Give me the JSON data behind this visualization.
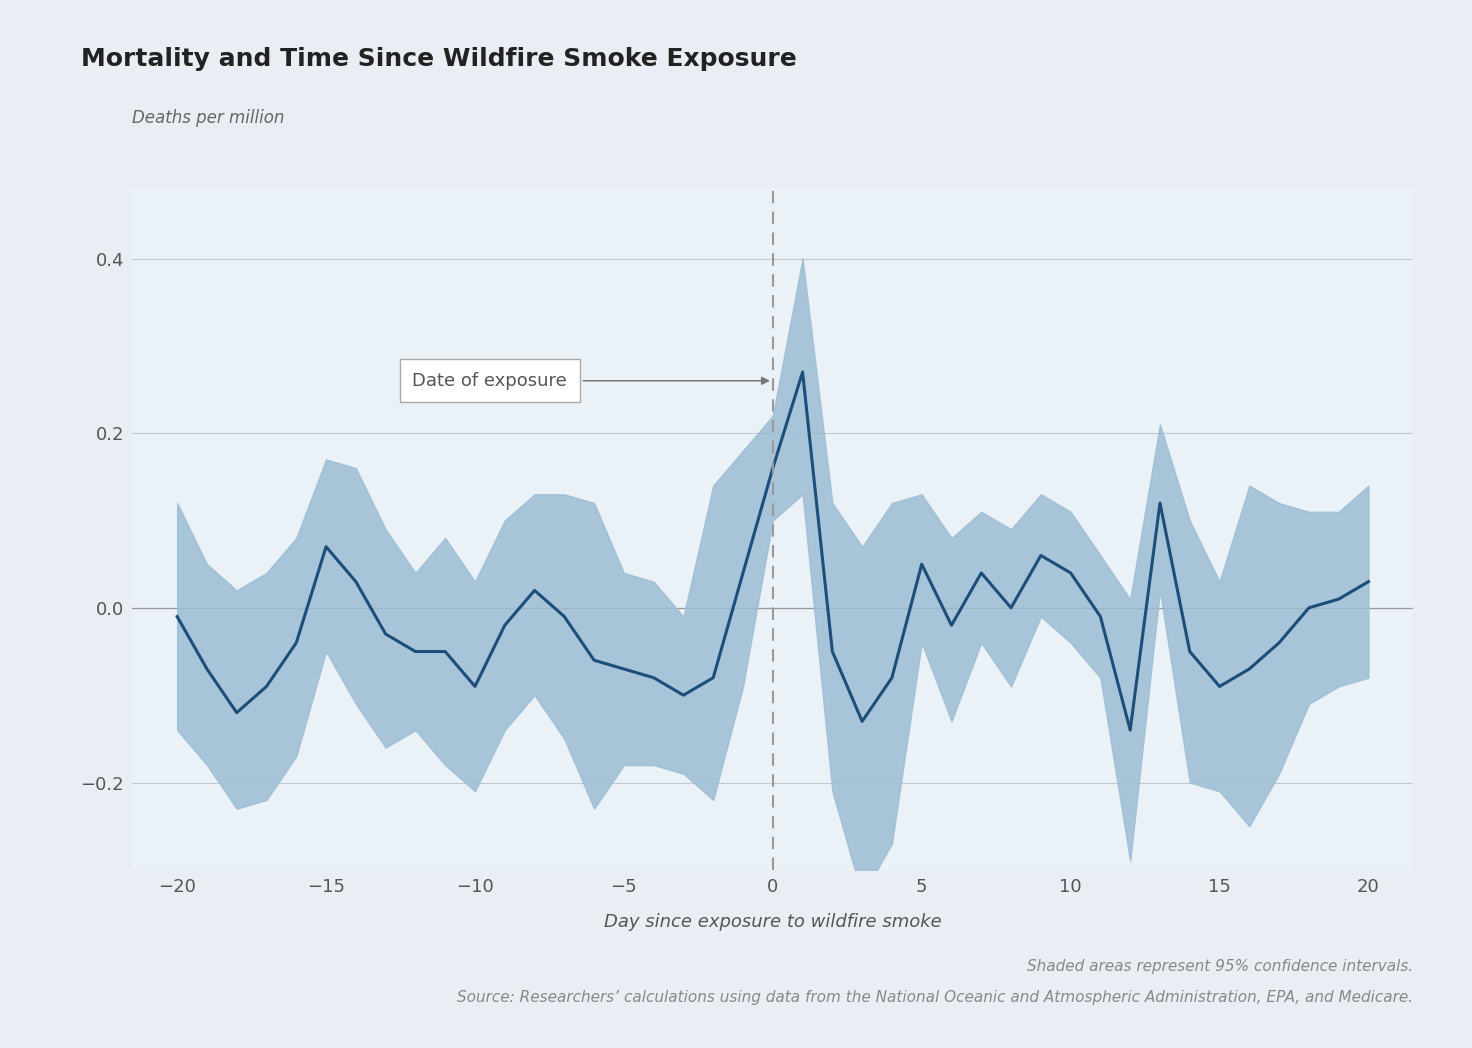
{
  "title": "Mortality and Time Since Wildfire Smoke Exposure",
  "ylabel": "Deaths per million",
  "xlabel": "Day since exposure to wildfire smoke",
  "background_color": "#e8eef3",
  "plot_bg_color": "#eaf1f7",
  "line_color": "#1d4e7a",
  "ci_color": "#9dbdd4",
  "annotation_text": "Date of exposure",
  "source_line1": "Shaded areas represent 95% confidence intervals.",
  "source_line2": "Source: Researchers’ calculations using data from the National Oceanic and Atmospheric Administration, EPA, and Medicare.",
  "xlim": [
    -21.5,
    21.5
  ],
  "ylim": [
    -0.3,
    0.48
  ],
  "yticks": [
    -0.2,
    0.0,
    0.2,
    0.4
  ],
  "xticks": [
    -20,
    -15,
    -10,
    -5,
    0,
    5,
    10,
    15,
    20
  ],
  "days": [
    -20,
    -19,
    -18,
    -17,
    -16,
    -15,
    -14,
    -13,
    -12,
    -11,
    -10,
    -9,
    -8,
    -7,
    -6,
    -5,
    -4,
    -3,
    -2,
    -1,
    0,
    1,
    2,
    3,
    4,
    5,
    6,
    7,
    8,
    9,
    10,
    11,
    12,
    13,
    14,
    15,
    16,
    17,
    18,
    19,
    20
  ],
  "mean": [
    -0.01,
    -0.07,
    -0.12,
    -0.09,
    -0.04,
    0.07,
    0.03,
    -0.03,
    -0.05,
    -0.05,
    -0.09,
    -0.02,
    0.02,
    -0.01,
    -0.06,
    -0.07,
    -0.08,
    -0.1,
    -0.08,
    0.04,
    0.16,
    0.27,
    -0.05,
    -0.13,
    -0.08,
    0.05,
    -0.02,
    0.04,
    0.0,
    0.06,
    0.04,
    -0.01,
    -0.14,
    0.12,
    -0.05,
    -0.09,
    -0.07,
    -0.04,
    0.0,
    0.01,
    0.03
  ],
  "ci_upper": [
    0.12,
    0.05,
    0.02,
    0.04,
    0.08,
    0.17,
    0.16,
    0.09,
    0.04,
    0.08,
    0.03,
    0.1,
    0.13,
    0.13,
    0.12,
    0.04,
    0.03,
    -0.01,
    0.14,
    0.18,
    0.22,
    0.4,
    0.12,
    0.07,
    0.12,
    0.13,
    0.08,
    0.11,
    0.09,
    0.13,
    0.11,
    0.06,
    0.01,
    0.21,
    0.1,
    0.03,
    0.14,
    0.12,
    0.11,
    0.11,
    0.14
  ],
  "ci_lower": [
    -0.14,
    -0.18,
    -0.23,
    -0.22,
    -0.17,
    -0.05,
    -0.11,
    -0.16,
    -0.14,
    -0.18,
    -0.21,
    -0.14,
    -0.1,
    -0.15,
    -0.23,
    -0.18,
    -0.18,
    -0.19,
    -0.22,
    -0.09,
    0.1,
    0.13,
    -0.21,
    -0.33,
    -0.27,
    -0.04,
    -0.13,
    -0.04,
    -0.09,
    -0.01,
    -0.04,
    -0.08,
    -0.29,
    0.02,
    -0.2,
    -0.21,
    -0.25,
    -0.19,
    -0.11,
    -0.09,
    -0.08
  ]
}
